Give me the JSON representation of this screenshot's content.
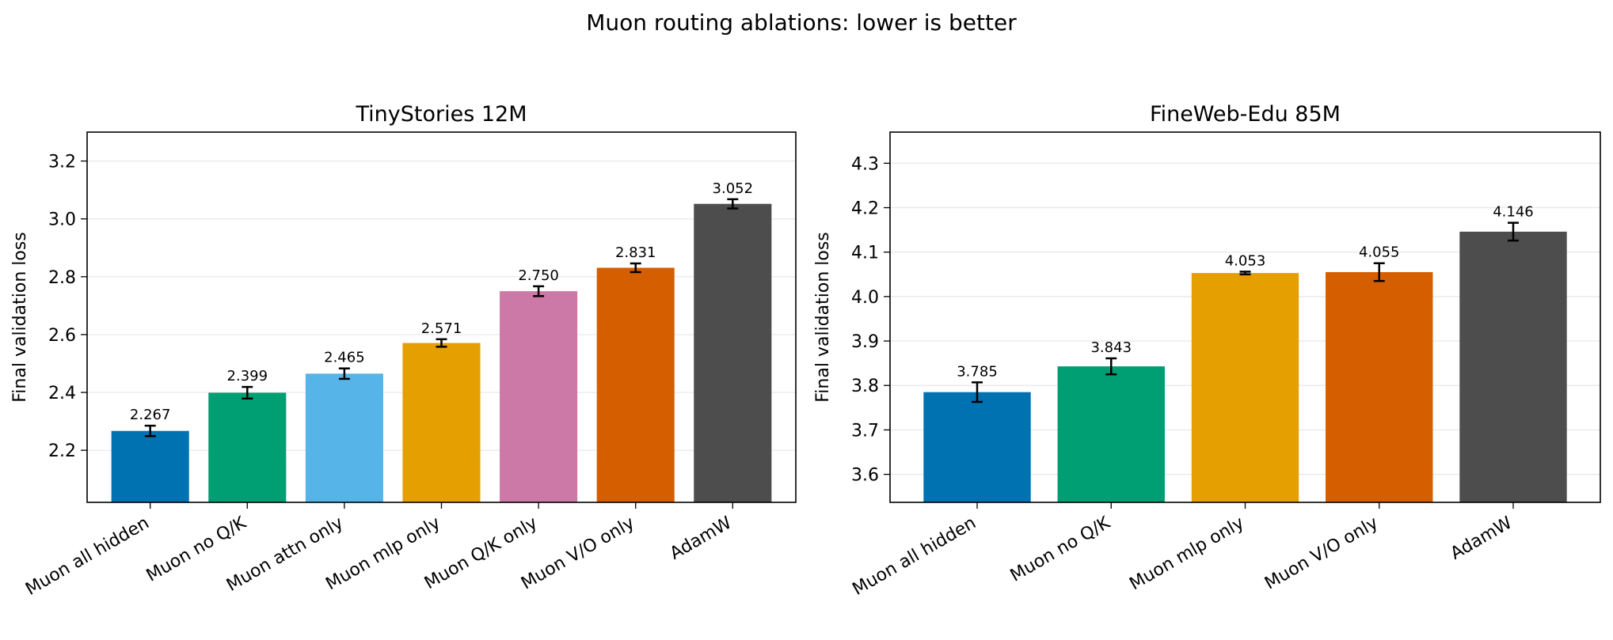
{
  "suptitle": "Muon routing ablations: lower is better",
  "chart_data": [
    {
      "type": "bar",
      "title": "TinyStories 12M",
      "ylabel": "Final validation loss",
      "xlabel": "",
      "ylim": [
        2.02,
        3.3
      ],
      "yticks": [
        "2.2",
        "2.4",
        "2.6",
        "2.8",
        "3.0",
        "3.2"
      ],
      "grid": "y",
      "categories": [
        "Muon all hidden",
        "Muon no Q/K",
        "Muon attn only",
        "Muon mlp only",
        "Muon Q/K only",
        "Muon V/O only",
        "AdamW"
      ],
      "values": [
        2.267,
        2.399,
        2.465,
        2.571,
        2.75,
        2.831,
        3.052
      ],
      "value_labels": [
        "2.267",
        "2.399",
        "2.465",
        "2.571",
        "2.750",
        "2.831",
        "3.052"
      ],
      "errors": [
        0.018,
        0.02,
        0.018,
        0.013,
        0.017,
        0.015,
        0.016
      ],
      "colors": [
        "#0072B2",
        "#009E73",
        "#56B4E9",
        "#E69F00",
        "#CC79A7",
        "#D55E00",
        "#4D4D4D"
      ]
    },
    {
      "type": "bar",
      "title": "FineWeb-Edu 85M",
      "ylabel": "Final validation loss",
      "xlabel": "",
      "ylim": [
        3.537,
        4.37
      ],
      "yticks": [
        "3.6",
        "3.7",
        "3.8",
        "3.9",
        "4.0",
        "4.1",
        "4.2",
        "4.3"
      ],
      "grid": "y",
      "categories": [
        "Muon all hidden",
        "Muon no Q/K",
        "Muon mlp only",
        "Muon V/O only",
        "AdamW"
      ],
      "values": [
        3.785,
        3.843,
        4.053,
        4.055,
        4.146
      ],
      "value_labels": [
        "3.785",
        "3.843",
        "4.053",
        "4.055",
        "4.146"
      ],
      "errors": [
        0.022,
        0.018,
        0.003,
        0.02,
        0.02
      ],
      "colors": [
        "#0072B2",
        "#009E73",
        "#E69F00",
        "#D55E00",
        "#4D4D4D"
      ]
    }
  ]
}
